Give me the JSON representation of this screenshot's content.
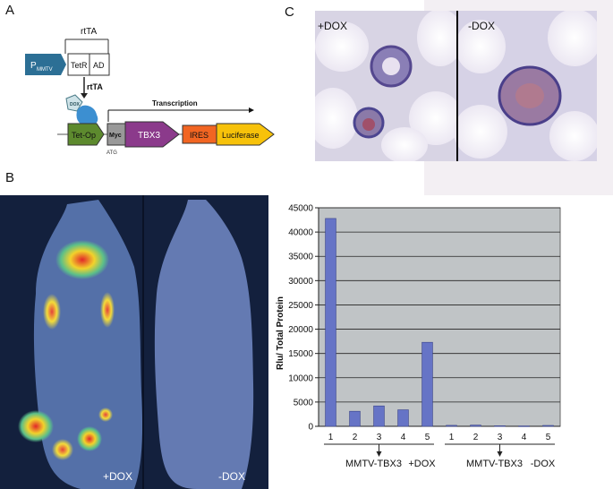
{
  "panels": {
    "a": "A",
    "b": "B",
    "c": "C"
  },
  "construct": {
    "rtta_top": "rtTA",
    "promoter_main": "P",
    "promoter_sub": "MMTV",
    "tetr": "TetR",
    "ad": "AD",
    "rtta_side": "rtTA",
    "dox": "DOX",
    "tet_op": "Tet-Op",
    "myc": "Myc",
    "tbx3": "TBX3",
    "ires": "IRES",
    "luciferase": "Luciferase",
    "transcription": "Transcription",
    "atg": "ATG",
    "colors": {
      "promoter": "#2c6f95",
      "tet_op": "#5d8a2e",
      "tbx3": "#8b3a8b",
      "ires": "#f26522",
      "luciferase": "#f7c20a",
      "protein": "#3c8fd1"
    }
  },
  "histology": {
    "left_label": "+DOX",
    "right_label": "-DOX"
  },
  "imaging": {
    "left_label": "+DOX",
    "right_label": "-DOX"
  },
  "chart_data": {
    "type": "bar",
    "ylabel": "Rlu/ Total Protein",
    "ylim": [
      0,
      45000
    ],
    "yticks": [
      0,
      5000,
      10000,
      15000,
      20000,
      25000,
      30000,
      35000,
      40000,
      45000
    ],
    "categories": [
      "1",
      "2",
      "3",
      "4",
      "5",
      "1",
      "2",
      "3",
      "4",
      "5"
    ],
    "values": [
      42800,
      3100,
      4200,
      3400,
      17300,
      200,
      250,
      120,
      80,
      180
    ],
    "grid": true,
    "bar_color": "#6674c6",
    "plot_bg": "#c0c4c6",
    "groups": [
      {
        "label": "MMTV-TBX3",
        "treatment": "+DOX",
        "start": 0,
        "end": 4
      },
      {
        "label": "MMTV-TBX3",
        "treatment": "-DOX",
        "start": 5,
        "end": 9
      }
    ]
  }
}
